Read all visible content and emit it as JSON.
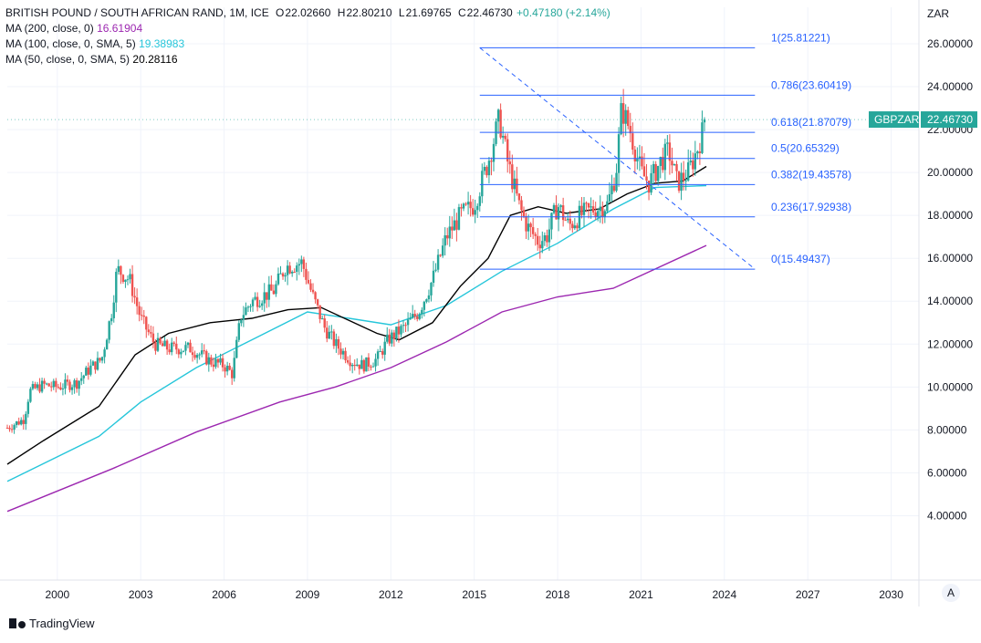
{
  "legend": {
    "instrument": "BRITISH POUND / SOUTH AFRICAN RAND, 1M, ICE",
    "open_label": "O",
    "open": "22.02660",
    "high_label": "H",
    "high": "22.80210",
    "low_label": "L",
    "low": "21.69765",
    "close_label": "C",
    "close": "22.46730",
    "change": "+0.47180 (+2.14%)",
    "ma200_label": "MA (200, close, 0)",
    "ma200_value": "16.61904",
    "ma100_label": "MA (100, close, 0, SMA, 5)",
    "ma100_value": "19.38983",
    "ma50_label": "MA (50, close, 0, SMA, 5)",
    "ma50_value": "20.28116"
  },
  "currency_label": "ZAR",
  "price_tag": {
    "symbol": "GBPZAR",
    "value": "22.46730"
  },
  "branding": "TradingView",
  "auto_button": "A",
  "colors": {
    "up": "#26a69a",
    "down": "#ef5350",
    "ma200": "#9c27b0",
    "ma100": "#26c6da",
    "ma50": "#000000",
    "fib": "#2962ff",
    "tag_bg": "#26a69a",
    "grid": "#f0f3fa",
    "axis_text": "#131722"
  },
  "chart_data": {
    "type": "candlestick",
    "title": "BRITISH POUND / SOUTH AFRICAN RAND, 1M, ICE",
    "xlabel": "",
    "ylabel": "",
    "x_ticks": [
      "2000",
      "2003",
      "2006",
      "2009",
      "2012",
      "2015",
      "2018",
      "2021",
      "2024",
      "2027",
      "2030"
    ],
    "y_ticks": [
      "4.00000",
      "6.00000",
      "8.00000",
      "10.00000",
      "12.00000",
      "14.00000",
      "16.00000",
      "18.00000",
      "20.00000",
      "22.00000",
      "24.00000",
      "26.00000"
    ],
    "xlim": [
      1998.2,
      2031.0
    ],
    "ylim": [
      1.0,
      27.7
    ],
    "grid": true,
    "price_keypoints": [
      [
        1998.2,
        8.1
      ],
      [
        1998.8,
        8.5
      ],
      [
        1999.0,
        9.8
      ],
      [
        1999.5,
        10.1
      ],
      [
        2000.0,
        10.0
      ],
      [
        2000.7,
        10.2
      ],
      [
        2001.2,
        10.9
      ],
      [
        2001.6,
        11.3
      ],
      [
        2001.95,
        13.5
      ],
      [
        2002.15,
        15.5
      ],
      [
        2002.6,
        15.0
      ],
      [
        2003.0,
        13.2
      ],
      [
        2003.5,
        12.0
      ],
      [
        2004.0,
        11.8
      ],
      [
        2004.8,
        11.8
      ],
      [
        2005.5,
        11.2
      ],
      [
        2006.0,
        11.0
      ],
      [
        2006.3,
        10.6
      ],
      [
        2006.6,
        13.3
      ],
      [
        2007.0,
        14.0
      ],
      [
        2007.8,
        14.5
      ],
      [
        2008.2,
        15.6
      ],
      [
        2008.8,
        15.8
      ],
      [
        2009.2,
        14.2
      ],
      [
        2009.6,
        12.8
      ],
      [
        2010.0,
        12.0
      ],
      [
        2010.6,
        11.2
      ],
      [
        2011.0,
        11.0
      ],
      [
        2011.5,
        11.3
      ],
      [
        2011.9,
        12.2
      ],
      [
        2012.5,
        12.8
      ],
      [
        2013.0,
        13.5
      ],
      [
        2013.5,
        15.0
      ],
      [
        2014.0,
        17.0
      ],
      [
        2014.5,
        18.0
      ],
      [
        2015.0,
        18.5
      ],
      [
        2015.5,
        20.5
      ],
      [
        2015.9,
        22.5
      ],
      [
        2016.2,
        20.5
      ],
      [
        2016.6,
        18.5
      ],
      [
        2016.9,
        17.5
      ],
      [
        2017.3,
        16.8
      ],
      [
        2017.6,
        17.0
      ],
      [
        2018.0,
        18.5
      ],
      [
        2018.4,
        17.5
      ],
      [
        2018.8,
        18.0
      ],
      [
        2019.3,
        18.3
      ],
      [
        2019.8,
        18.5
      ],
      [
        2020.1,
        20.0
      ],
      [
        2020.3,
        23.0
      ],
      [
        2020.6,
        22.0
      ],
      [
        2021.0,
        20.0
      ],
      [
        2021.3,
        19.5
      ],
      [
        2021.7,
        20.5
      ],
      [
        2022.0,
        21.0
      ],
      [
        2022.3,
        19.5
      ],
      [
        2022.7,
        20.0
      ],
      [
        2023.0,
        21.0
      ],
      [
        2023.35,
        22.467
      ]
    ],
    "moving_averages": [
      {
        "name": "MA (200, close, 0)",
        "color": "#9c27b0",
        "points": [
          [
            1998.2,
            4.2
          ],
          [
            2002.0,
            6.2
          ],
          [
            2005.0,
            7.9
          ],
          [
            2008.0,
            9.3
          ],
          [
            2010.0,
            10.0
          ],
          [
            2012.0,
            10.9
          ],
          [
            2014.0,
            12.1
          ],
          [
            2016.0,
            13.5
          ],
          [
            2018.0,
            14.2
          ],
          [
            2020.0,
            14.6
          ],
          [
            2023.35,
            16.6
          ]
        ]
      },
      {
        "name": "MA (100, close, 0, SMA, 5)",
        "color": "#26c6da",
        "points": [
          [
            1998.2,
            5.6
          ],
          [
            2001.5,
            7.7
          ],
          [
            2003.0,
            9.3
          ],
          [
            2005.0,
            10.9
          ],
          [
            2007.0,
            12.2
          ],
          [
            2009.0,
            13.5
          ],
          [
            2010.5,
            13.2
          ],
          [
            2012.0,
            12.9
          ],
          [
            2014.0,
            13.8
          ],
          [
            2016.0,
            15.4
          ],
          [
            2018.0,
            16.7
          ],
          [
            2020.0,
            18.3
          ],
          [
            2021.5,
            19.3
          ],
          [
            2023.35,
            19.39
          ]
        ]
      },
      {
        "name": "MA (50, close, 0, SMA, 5)",
        "color": "#000000",
        "points": [
          [
            1998.2,
            6.4
          ],
          [
            1999.5,
            7.5
          ],
          [
            2001.5,
            9.1
          ],
          [
            2002.8,
            11.5
          ],
          [
            2004.0,
            12.5
          ],
          [
            2005.5,
            13.0
          ],
          [
            2007.0,
            13.2
          ],
          [
            2008.3,
            13.6
          ],
          [
            2009.5,
            13.7
          ],
          [
            2010.5,
            13.1
          ],
          [
            2011.5,
            12.5
          ],
          [
            2012.3,
            12.2
          ],
          [
            2013.5,
            13.0
          ],
          [
            2014.5,
            14.7
          ],
          [
            2015.5,
            16.0
          ],
          [
            2016.3,
            18.0
          ],
          [
            2017.3,
            18.4
          ],
          [
            2018.3,
            18.1
          ],
          [
            2019.5,
            18.3
          ],
          [
            2020.5,
            19.0
          ],
          [
            2021.5,
            19.5
          ],
          [
            2022.5,
            19.6
          ],
          [
            2023.35,
            20.28
          ]
        ]
      }
    ],
    "fibonacci": {
      "x_start": 2015.2,
      "x_end": 2025.1,
      "trend_from": [
        2015.2,
        25.81221
      ],
      "trend_to": [
        2025.1,
        15.49437
      ],
      "levels": [
        {
          "label": "1(25.81221)",
          "value": 25.81221
        },
        {
          "label": "0.786(23.60419)",
          "value": 23.60419
        },
        {
          "label": "0.618(21.87079)",
          "value": 21.87079
        },
        {
          "label": "0.5(20.65329)",
          "value": 20.65329
        },
        {
          "label": "0.382(19.43578)",
          "value": 19.43578
        },
        {
          "label": "0.236(17.92938)",
          "value": 17.92938
        },
        {
          "label": "0(15.49437)",
          "value": 15.49437
        }
      ]
    },
    "last_price": 22.4673
  }
}
